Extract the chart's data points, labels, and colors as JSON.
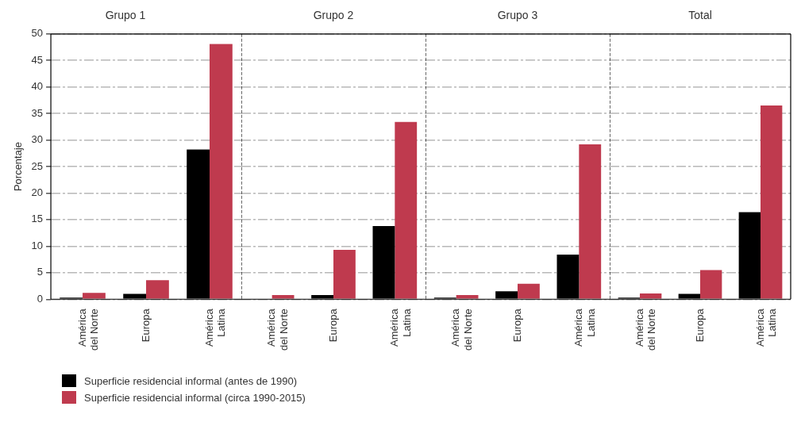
{
  "chart_data": [
    {
      "type": "bar",
      "title": "Grupo 1",
      "ylabel": "Porcentaje",
      "categories": [
        "América del Norte",
        "Europa",
        "América Latina"
      ],
      "ylim": [
        0,
        50
      ],
      "yticks": [
        0,
        5,
        10,
        15,
        20,
        25,
        30,
        35,
        40,
        45,
        50
      ],
      "grid": "y",
      "legend": "bottom",
      "series": [
        {
          "name": "Superficie residencial informal (antes de 1990)",
          "color": "#000000",
          "values": [
            0.3,
            1.0,
            28.2
          ]
        },
        {
          "name": "Superficie residencial informal (circa 1990-2015)",
          "color": "#bf3a4e",
          "values": [
            1.2,
            3.6,
            48.1
          ]
        }
      ]
    },
    {
      "type": "bar",
      "title": "Grupo 2",
      "categories": [
        "América del Norte",
        "Europa",
        "América Latina"
      ],
      "ylim": [
        0,
        50
      ],
      "yticks": [
        0,
        5,
        10,
        15,
        20,
        25,
        30,
        35,
        40,
        45,
        50
      ],
      "grid": "y",
      "tick_labels": "x",
      "series": [
        {
          "color": "#000000",
          "values": [
            0,
            0.8,
            13.8
          ]
        },
        {
          "color": "#bf3a4e",
          "values": [
            0.8,
            9.3,
            33.4
          ]
        }
      ]
    },
    {
      "type": "bar",
      "title": "Grupo 3",
      "categories": [
        "América del Norte",
        "Europa",
        "América Latina"
      ],
      "ylim": [
        0,
        50
      ],
      "yticks": [
        0,
        5,
        10,
        15,
        20,
        25,
        30,
        35,
        40,
        45,
        50
      ],
      "grid": "y",
      "tick_labels": "x",
      "series": [
        {
          "color": "#000000",
          "values": [
            0.3,
            1.5,
            8.4
          ]
        },
        {
          "color": "#bf3a4e",
          "values": [
            0.8,
            2.9,
            29.2
          ]
        }
      ]
    },
    {
      "type": "bar",
      "title": "Total",
      "categories": [
        "América del Norte",
        "Europa",
        "América Latina"
      ],
      "ylim": [
        0,
        50
      ],
      "yticks": [
        0,
        5,
        10,
        15,
        20,
        25,
        30,
        35,
        40,
        45,
        50
      ],
      "grid": "y",
      "tick_labels": "x",
      "series": [
        {
          "color": "#000000",
          "values": [
            0.3,
            1.0,
            16.4
          ]
        },
        {
          "color": "#bf3a4e",
          "values": [
            1.1,
            5.5,
            36.5
          ]
        }
      ]
    }
  ]
}
